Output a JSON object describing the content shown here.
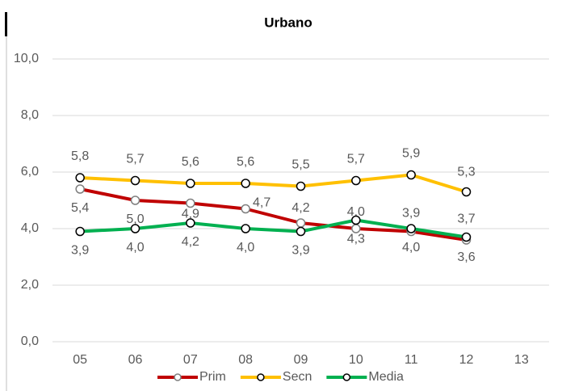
{
  "chart_data": {
    "type": "line",
    "title": "Urbano",
    "categories": [
      "05",
      "06",
      "07",
      "08",
      "09",
      "10",
      "11",
      "12",
      "13"
    ],
    "ylim": [
      0,
      10
    ],
    "yticks": [
      {
        "value": 0,
        "label": "0,0"
      },
      {
        "value": 2,
        "label": "2,0"
      },
      {
        "value": 4,
        "label": "4,0"
      },
      {
        "value": 6,
        "label": "6,0"
      },
      {
        "value": 8,
        "label": "8,0"
      },
      {
        "value": 10,
        "label": "10,0"
      }
    ],
    "grid": true,
    "legend": "bottom",
    "series": [
      {
        "name": "Prim",
        "color": "#c00000",
        "values": [
          5.4,
          5.0,
          4.9,
          4.7,
          4.2,
          4.0,
          3.9,
          3.6,
          null
        ],
        "value_labels": [
          "5,4",
          "5,0",
          "4,9",
          "4,7",
          "4,2",
          "4,0",
          "3,9",
          "3,6",
          null
        ]
      },
      {
        "name": "Secn",
        "color": "#ffc000",
        "values": [
          5.8,
          5.7,
          5.6,
          5.6,
          5.5,
          5.7,
          5.9,
          5.3,
          null
        ],
        "value_labels": [
          "5,8",
          "5,7",
          "5,6",
          "5,6",
          "5,5",
          "5,7",
          "5,9",
          "5,3",
          null
        ]
      },
      {
        "name": "Media",
        "color": "#00b050",
        "values": [
          3.9,
          4.0,
          4.2,
          4.0,
          3.9,
          4.3,
          4.0,
          3.7,
          null
        ],
        "value_labels": [
          "3,9",
          "4,0",
          "4,2",
          "4,0",
          "3,9",
          "4,3",
          "4,0",
          "3,7",
          null
        ]
      }
    ]
  }
}
